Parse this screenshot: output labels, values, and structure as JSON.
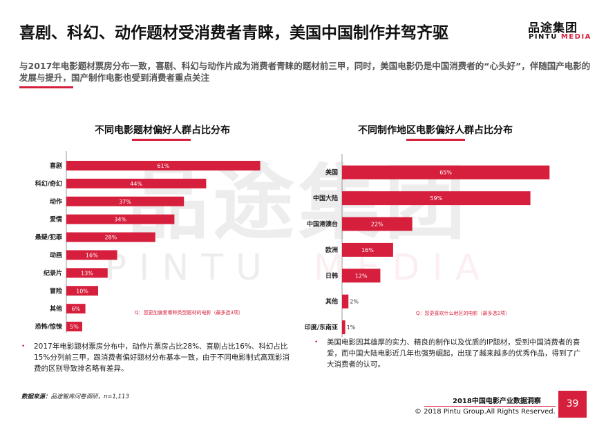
{
  "header": {
    "title": "喜剧、科幻、动作题材受消费者青睐，美国中国制作并驾齐驱",
    "subtitle": "与2017年电影题材票房分布一致，喜剧、科幻与动作片成为消费者青睐的题材前三甲，同时，美国电影仍是中国消费者的“心头好”，伴随国产电影的发展与提升，国产制作电影也受到消费者重点关注"
  },
  "logo": {
    "cn": "品途集团",
    "en_a": "PINTU",
    "en_b": "MEDIA"
  },
  "watermark": {
    "cn": "品途集团",
    "en_a": "PINTU",
    "en_b": "MEDIA"
  },
  "colors": {
    "accent": "#d61f3c",
    "bar": "#d61f3c"
  },
  "chart_data": [
    {
      "type": "bar",
      "orientation": "horizontal",
      "title": "不同电影题材偏好人群占比分布",
      "categories": [
        "喜剧",
        "科幻/奇幻",
        "动作",
        "爱情",
        "悬疑/犯罪",
        "动画",
        "纪录片",
        "冒险",
        "其他",
        "恐怖/惊悚"
      ],
      "values": [
        61,
        44,
        37,
        34,
        28,
        16,
        13,
        10,
        6,
        5
      ],
      "value_labels": [
        "61%",
        "44%",
        "37%",
        "34%",
        "28%",
        "16%",
        "13%",
        "10%",
        "6%",
        "5%"
      ],
      "unit": "%",
      "note": "Q：您更加偏爱哪种类型题材的电影（最多选3项）",
      "xlim": [
        0,
        100
      ]
    },
    {
      "type": "bar",
      "orientation": "horizontal",
      "title": "不同制作地区电影偏好人群占比分布",
      "categories": [
        "美国",
        "中国大陆",
        "中国港澳台",
        "欧洲",
        "日韩",
        "其他",
        "印度/东南亚"
      ],
      "values": [
        65,
        59,
        22,
        16,
        12,
        2,
        1
      ],
      "value_labels": [
        "65%",
        "59%",
        "22%",
        "16%",
        "12%",
        "2%",
        "1%"
      ],
      "unit": "%",
      "note": "Q：您更喜欢什么地区的电影（最多选2项）",
      "xlim": [
        0,
        100
      ]
    }
  ],
  "bullets": {
    "left": "2017年电影题材票房分布中，动作片票房占比28%、喜剧占比16%、科幻占比15%分列前三甲，跟消费者偏好题材分布基本一致，由于不同电影制式高观影消费的区别导致排名略有差异。",
    "right": "美国电影因其雄厚的实力、精良的制作以及优质的IP题材，受到中国消费者的喜爱，而中国大陆电影近几年也强势崛起，出现了越来越多的优秀作品，得到了广大消费者的认可。"
  },
  "source": {
    "label": "数据来源：",
    "text": "品途智库问卷调研，n=1,113"
  },
  "footer": {
    "report": "2018中国电影产业数据洞察",
    "copyright": "© 2018 Pintu Group.All Rights Reserved.",
    "page": "39"
  }
}
